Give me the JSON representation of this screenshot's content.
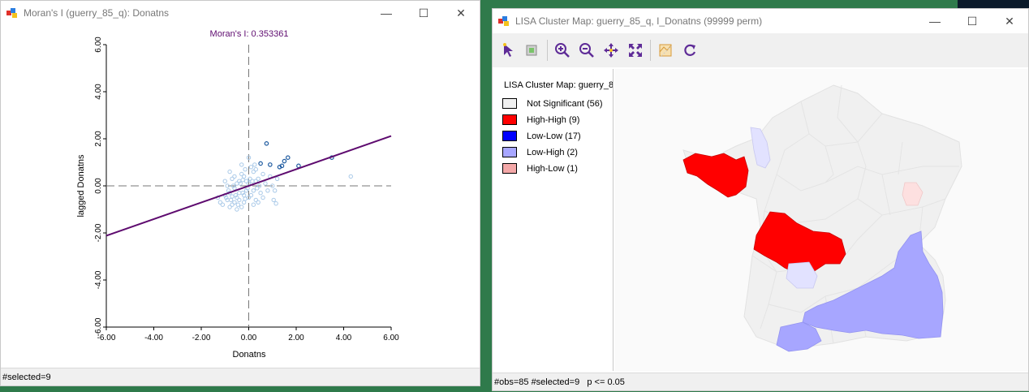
{
  "moran_window": {
    "title": "Moran's I (guerry_85_q): Donatns",
    "status": "#selected=9",
    "chart_title": "Moran's I: 0.353361"
  },
  "lisa_window": {
    "title": "LISA Cluster Map: guerry_85_q, I_Donatns (99999 perm)",
    "status": "#obs=85 #selected=9   p <= 0.05",
    "legend_title": "LISA Cluster Map: guerry_8",
    "legend": [
      {
        "label": "Not Significant (56)",
        "color": "#f0f0f0"
      },
      {
        "label": "High-High (9)",
        "color": "#ff0000"
      },
      {
        "label": "Low-Low (17)",
        "color": "#0000ff"
      },
      {
        "label": "Low-High (2)",
        "color": "#a7a6ff"
      },
      {
        "label": "High-Low (1)",
        "color": "#f4a8a8"
      }
    ],
    "toolbar_icons": [
      "select-icon",
      "select-all-icon",
      "zoom-in-icon",
      "zoom-out-icon",
      "pan-icon",
      "full-extent-icon",
      "basemap-icon",
      "refresh-icon"
    ]
  },
  "window_controls": {
    "minimize": "—",
    "maximize": "☐",
    "close": "✕"
  },
  "colors": {
    "plot_accent": "#5e0b6f",
    "point_color": "#1f5ba0",
    "point_light": "#a9c9e8",
    "high_high": "#ff0000",
    "low_high": "#a7a6ff",
    "high_low": "#f4a8a8",
    "not_sig": "#f0f0f0"
  },
  "chart_data": {
    "type": "scatter",
    "title": "Moran's I: 0.353361",
    "xlabel": "Donatns",
    "ylabel": "lagged Donatns",
    "xlim": [
      -6,
      6
    ],
    "ylim": [
      -6,
      6
    ],
    "xticks": [
      "-6.00",
      "-4.00",
      "-2.00",
      "0.00",
      "2.00",
      "4.00",
      "6.00"
    ],
    "yticks": [
      "-6.00",
      "-4.00",
      "-2.00",
      "0.00",
      "2.00",
      "4.00",
      "6.00"
    ],
    "regression": {
      "slope": 0.353361,
      "intercept": 0
    },
    "selected_points": [
      [
        0.75,
        1.8
      ],
      [
        0.5,
        0.95
      ],
      [
        0.9,
        0.9
      ],
      [
        1.4,
        0.85
      ],
      [
        1.5,
        1.05
      ],
      [
        1.65,
        1.2
      ],
      [
        2.1,
        0.85
      ],
      [
        3.5,
        1.2
      ],
      [
        1.3,
        0.8
      ]
    ],
    "points": [
      [
        -0.9,
        -0.6
      ],
      [
        -0.8,
        -0.3
      ],
      [
        -0.7,
        -0.8
      ],
      [
        -0.6,
        -0.1
      ],
      [
        -0.5,
        -0.5
      ],
      [
        -0.4,
        0.2
      ],
      [
        -0.3,
        -0.9
      ],
      [
        -0.2,
        0.4
      ],
      [
        -0.1,
        -0.2
      ],
      [
        0.0,
        0.1
      ],
      [
        0.1,
        -0.4
      ],
      [
        0.2,
        0.6
      ],
      [
        0.3,
        -0.6
      ],
      [
        0.4,
        0.3
      ],
      [
        -1.0,
        -0.4
      ],
      [
        -0.9,
        0.0
      ],
      [
        -0.8,
        -0.9
      ],
      [
        -0.7,
        0.3
      ],
      [
        -0.6,
        -0.7
      ],
      [
        -0.5,
        0.1
      ],
      [
        -0.4,
        -0.3
      ],
      [
        -0.3,
        0.5
      ],
      [
        -0.2,
        -0.7
      ],
      [
        -0.1,
        0.2
      ],
      [
        0.0,
        -0.5
      ],
      [
        0.1,
        0.8
      ],
      [
        0.2,
        -0.2
      ],
      [
        0.3,
        0.2
      ],
      [
        -1.1,
        -0.8
      ],
      [
        -0.95,
        -0.5
      ],
      [
        -0.85,
        -0.2
      ],
      [
        -0.75,
        -0.6
      ],
      [
        -0.65,
        0.0
      ],
      [
        -0.55,
        -0.4
      ],
      [
        -0.45,
        -0.8
      ],
      [
        -0.35,
        0.1
      ],
      [
        -0.25,
        -0.3
      ],
      [
        -0.15,
        0.7
      ],
      [
        -0.05,
        -0.1
      ],
      [
        0.05,
        0.3
      ],
      [
        0.15,
        0.2
      ],
      [
        0.25,
        0.9
      ],
      [
        0.35,
        -0.1
      ],
      [
        0.45,
        0.0
      ],
      [
        -1.2,
        -0.7
      ],
      [
        -0.5,
        -1.0
      ],
      [
        -0.3,
        0.9
      ],
      [
        0.0,
        1.2
      ],
      [
        -0.2,
        -0.4
      ],
      [
        0.5,
        -0.3
      ],
      [
        0.6,
        0.5
      ],
      [
        0.7,
        0.1
      ],
      [
        0.8,
        -0.2
      ],
      [
        0.9,
        0.4
      ],
      [
        1.0,
        0.0
      ],
      [
        1.1,
        -0.2
      ],
      [
        1.2,
        0.3
      ],
      [
        1.05,
        -0.6
      ],
      [
        1.15,
        -0.75
      ],
      [
        -1.3,
        -0.5
      ],
      [
        -1.0,
        0.2
      ],
      [
        -0.6,
        0.4
      ],
      [
        -0.8,
        0.6
      ],
      [
        0.3,
        0.7
      ],
      [
        0.6,
        -0.5
      ],
      [
        4.3,
        0.4
      ],
      [
        -0.4,
        -0.6
      ],
      [
        -0.7,
        -0.45
      ],
      [
        -0.15,
        -0.55
      ],
      [
        0.2,
        -0.8
      ],
      [
        0.4,
        -0.7
      ],
      [
        -0.25,
        0.25
      ]
    ]
  }
}
